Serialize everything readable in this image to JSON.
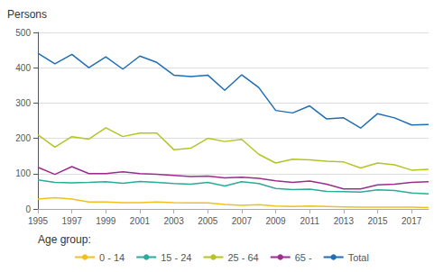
{
  "chart_data": {
    "type": "line",
    "y_label": "Persons",
    "legend_title": "Age group:",
    "x": [
      1995,
      1996,
      1997,
      1998,
      1999,
      2000,
      2001,
      2002,
      2003,
      2004,
      2005,
      2006,
      2007,
      2008,
      2009,
      2010,
      2011,
      2012,
      2013,
      2014,
      2015,
      2016,
      2017,
      2018
    ],
    "series": [
      {
        "name": "0 - 14",
        "color": "#f0c020",
        "values": [
          28,
          32,
          28,
          20,
          20,
          18,
          18,
          20,
          18,
          17,
          17,
          13,
          10,
          12,
          8,
          7,
          8,
          7,
          6,
          5,
          5,
          5,
          5,
          4
        ]
      },
      {
        "name": "15 - 24",
        "color": "#2aab9b",
        "values": [
          82,
          75,
          74,
          75,
          77,
          73,
          78,
          75,
          72,
          70,
          75,
          65,
          77,
          72,
          58,
          55,
          56,
          50,
          49,
          48,
          54,
          52,
          45,
          43
        ]
      },
      {
        "name": "25 - 64",
        "color": "#b5c425",
        "values": [
          210,
          175,
          205,
          198,
          230,
          205,
          215,
          215,
          168,
          172,
          200,
          191,
          197,
          155,
          130,
          141,
          139,
          135,
          133,
          116,
          130,
          125,
          110,
          112
        ]
      },
      {
        "name": "65 -",
        "color": "#9b2d8e",
        "values": [
          118,
          98,
          120,
          100,
          100,
          105,
          100,
          98,
          95,
          92,
          93,
          88,
          90,
          87,
          80,
          75,
          79,
          70,
          57,
          57,
          68,
          70,
          75,
          77
        ]
      },
      {
        "name": "Total",
        "color": "#1f6eb5",
        "values": [
          441,
          411,
          438,
          400,
          431,
          396,
          433,
          415,
          379,
          375,
          379,
          336,
          380,
          344,
          279,
          272,
          292,
          255,
          258,
          229,
          270,
          258,
          238,
          239
        ]
      }
    ],
    "xlim": [
      1995,
      2018
    ],
    "xticks": [
      1995,
      1997,
      1999,
      2001,
      2003,
      2005,
      2007,
      2009,
      2011,
      2013,
      2015,
      2017
    ],
    "ylim": [
      0,
      500
    ],
    "yticks": [
      0,
      100,
      200,
      300,
      400,
      500
    ],
    "grid": true,
    "legend": "bottom"
  }
}
